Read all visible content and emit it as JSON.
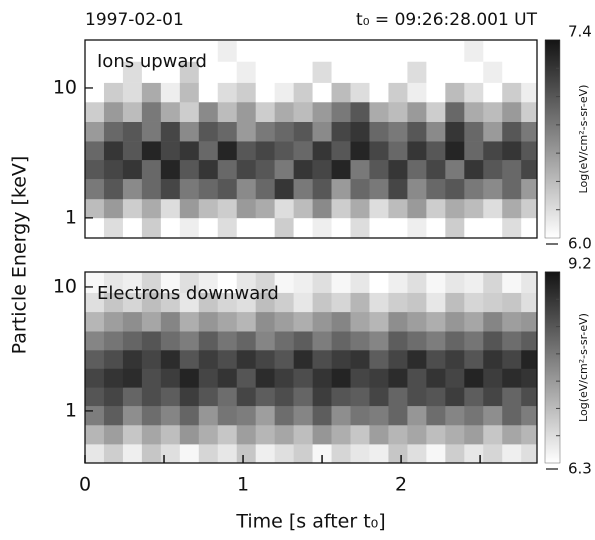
{
  "date": "1997-02-01",
  "time_ref": "t₀ = 09:26:28.001 UT",
  "ylabel": "Particle Energy  [keV]",
  "xlabel": "Time [s after t₀]",
  "chart_data": [
    {
      "type": "heatmap",
      "title": "Ions upward",
      "log_y": true,
      "xlim": [
        0,
        2.86
      ],
      "ylim": [
        0.7,
        23.4
      ],
      "yticks": [
        1,
        10
      ],
      "clim": [
        6.0,
        7.4
      ],
      "cticks": [
        {
          "value": 6.0,
          "label": "6.0"
        },
        7.4
      ],
      "colorbar_label": "Log(eV/cm²-s-sr-eV)",
      "colormap": "gray_r",
      "xbins": [
        0,
        0.12,
        0.24,
        0.36,
        0.48,
        0.6,
        0.72,
        0.84,
        0.96,
        1.08,
        1.2,
        1.32,
        1.44,
        1.56,
        1.68,
        1.8,
        1.92,
        2.04,
        2.16,
        2.28,
        2.4,
        2.52,
        2.64,
        2.76,
        2.88
      ],
      "ybins": [
        0.7,
        1.0,
        1.4,
        2.0,
        2.8,
        3.9,
        5.5,
        7.8,
        11,
        16,
        23
      ],
      "values": [
        [
          6.0,
          6.2,
          6.0,
          6.3,
          6.0,
          6.1,
          6.0,
          6.2,
          6.0,
          6.0,
          6.3,
          6.0,
          6.1,
          6.0,
          6.2,
          6.0,
          6.0,
          6.1,
          6.0,
          6.3,
          6.0,
          6.0,
          6.2,
          6.0
        ],
        [
          6.4,
          6.6,
          6.3,
          6.5,
          6.2,
          6.6,
          6.4,
          6.3,
          6.6,
          6.5,
          6.2,
          6.4,
          6.7,
          6.3,
          6.5,
          6.2,
          6.4,
          6.6,
          6.3,
          6.5,
          6.4,
          6.2,
          6.5,
          6.3
        ],
        [
          6.8,
          7.0,
          6.7,
          6.9,
          7.1,
          6.8,
          6.9,
          7.0,
          6.7,
          6.9,
          7.2,
          6.8,
          7.0,
          6.6,
          6.9,
          6.8,
          7.1,
          6.7,
          6.9,
          7.0,
          6.8,
          6.7,
          6.9,
          6.6
        ],
        [
          7.0,
          7.1,
          7.2,
          6.9,
          7.3,
          7.0,
          7.2,
          6.9,
          7.1,
          7.0,
          6.8,
          7.2,
          7.1,
          7.3,
          6.8,
          7.0,
          7.2,
          6.9,
          7.1,
          6.8,
          7.2,
          7.0,
          6.9,
          7.1
        ],
        [
          6.9,
          7.2,
          7.0,
          7.3,
          7.1,
          7.2,
          6.9,
          7.3,
          7.0,
          7.1,
          7.0,
          6.9,
          7.2,
          7.0,
          7.3,
          7.1,
          6.9,
          7.2,
          7.0,
          7.3,
          6.9,
          7.1,
          7.2,
          7.0
        ],
        [
          6.6,
          6.9,
          7.0,
          6.8,
          7.1,
          6.7,
          7.0,
          6.9,
          6.6,
          6.8,
          6.9,
          7.0,
          6.7,
          7.1,
          7.2,
          6.9,
          6.8,
          7.0,
          6.7,
          7.2,
          6.9,
          6.6,
          7.0,
          6.8
        ],
        [
          6.3,
          6.6,
          6.4,
          6.8,
          6.5,
          6.3,
          6.7,
          6.4,
          6.6,
          6.3,
          6.5,
          6.4,
          6.6,
          6.8,
          7.0,
          6.5,
          6.4,
          6.6,
          6.3,
          6.9,
          6.5,
          6.4,
          6.6,
          6.3
        ],
        [
          6.0,
          6.3,
          6.2,
          6.5,
          6.1,
          6.4,
          6.0,
          6.2,
          6.3,
          6.0,
          6.1,
          6.3,
          6.0,
          6.4,
          6.2,
          6.0,
          6.3,
          6.1,
          6.0,
          6.4,
          6.2,
          6.0,
          6.3,
          6.1
        ],
        [
          6.0,
          6.0,
          6.2,
          6.0,
          6.0,
          6.3,
          6.0,
          6.0,
          6.1,
          6.0,
          6.0,
          6.0,
          6.2,
          6.0,
          6.0,
          6.0,
          6.0,
          6.2,
          6.0,
          6.0,
          6.0,
          6.1,
          6.0,
          6.0
        ],
        [
          6.0,
          6.0,
          6.0,
          6.0,
          6.0,
          6.0,
          6.0,
          6.1,
          6.0,
          6.0,
          6.0,
          6.0,
          6.0,
          6.0,
          6.0,
          6.0,
          6.0,
          6.0,
          6.0,
          6.0,
          6.1,
          6.0,
          6.0,
          6.0
        ]
      ]
    },
    {
      "type": "heatmap",
      "title": "Electrons downward",
      "log_y": true,
      "xlim": [
        0,
        2.86
      ],
      "ylim": [
        0.38,
        13.2
      ],
      "yticks": [
        1,
        10
      ],
      "xticks": [
        0,
        1,
        2
      ],
      "xminor": [
        0.5,
        1.5,
        2.5
      ],
      "clim": [
        6.3,
        9.2
      ],
      "cticks": [
        6.3,
        9.2
      ],
      "colorbar_label": "Log(eV/cm²-s-sr-eV)",
      "colormap": "gray_r",
      "xbins": [
        0,
        0.12,
        0.24,
        0.36,
        0.48,
        0.6,
        0.72,
        0.84,
        0.96,
        1.08,
        1.2,
        1.32,
        1.44,
        1.56,
        1.68,
        1.8,
        1.92,
        2.04,
        2.16,
        2.28,
        2.4,
        2.52,
        2.64,
        2.76,
        2.88
      ],
      "ybins": [
        0.38,
        0.54,
        0.77,
        1.1,
        1.55,
        2.2,
        3.1,
        4.4,
        6.3,
        9.0,
        13
      ],
      "values": [
        [
          6.6,
          6.9,
          6.5,
          7.0,
          6.7,
          6.4,
          6.8,
          6.6,
          7.0,
          6.5,
          6.7,
          6.9,
          6.4,
          6.8,
          6.6,
          6.5,
          7.0,
          6.7,
          6.4,
          6.9,
          6.6,
          6.8,
          6.5,
          6.7
        ],
        [
          7.2,
          7.5,
          7.0,
          7.4,
          7.1,
          7.6,
          7.3,
          7.0,
          7.5,
          7.2,
          7.4,
          7.1,
          7.6,
          7.3,
          7.0,
          7.5,
          7.2,
          7.4,
          7.1,
          7.3,
          7.5,
          7.0,
          7.4,
          7.2
        ],
        [
          7.9,
          8.3,
          7.7,
          8.1,
          7.8,
          8.2,
          7.6,
          8.0,
          7.9,
          7.5,
          8.1,
          7.8,
          8.3,
          7.7,
          8.0,
          7.9,
          8.2,
          7.6,
          8.1,
          7.8,
          8.0,
          7.7,
          8.2,
          7.9
        ],
        [
          8.4,
          8.6,
          8.2,
          8.5,
          8.3,
          8.7,
          8.4,
          8.1,
          8.6,
          8.3,
          8.5,
          8.2,
          8.7,
          8.4,
          8.3,
          8.6,
          8.2,
          8.5,
          8.4,
          8.7,
          8.3,
          8.6,
          8.2,
          8.5
        ],
        [
          8.6,
          8.8,
          8.9,
          8.5,
          8.7,
          9.0,
          8.6,
          8.8,
          8.4,
          8.9,
          8.7,
          8.5,
          8.8,
          9.0,
          8.6,
          8.7,
          8.9,
          8.5,
          8.8,
          8.6,
          9.0,
          8.7,
          8.9,
          8.8
        ],
        [
          8.3,
          8.5,
          8.8,
          8.6,
          8.9,
          8.4,
          8.7,
          8.5,
          8.8,
          8.6,
          8.4,
          8.9,
          8.5,
          8.7,
          8.8,
          8.3,
          8.6,
          8.9,
          8.5,
          8.7,
          8.4,
          8.8,
          8.6,
          9.0
        ],
        [
          7.8,
          8.0,
          8.2,
          8.4,
          8.1,
          7.9,
          8.3,
          8.0,
          8.2,
          7.8,
          8.1,
          8.3,
          7.9,
          8.2,
          8.0,
          7.8,
          8.3,
          8.1,
          7.9,
          8.2,
          8.0,
          8.4,
          8.1,
          8.3
        ],
        [
          7.2,
          7.5,
          7.7,
          7.4,
          7.8,
          7.3,
          7.6,
          7.4,
          7.2,
          7.7,
          7.5,
          7.3,
          7.6,
          7.8,
          7.4,
          7.2,
          7.7,
          7.5,
          7.3,
          7.6,
          7.4,
          7.8,
          7.5,
          7.6
        ],
        [
          6.7,
          7.0,
          6.8,
          7.1,
          6.9,
          6.6,
          7.0,
          6.8,
          6.7,
          7.1,
          6.9,
          6.6,
          7.0,
          6.8,
          7.2,
          6.7,
          6.9,
          7.0,
          6.6,
          7.1,
          6.8,
          6.9,
          7.0,
          6.7
        ],
        [
          6.4,
          6.6,
          6.5,
          6.8,
          6.4,
          6.7,
          6.5,
          6.3,
          6.6,
          6.8,
          6.4,
          6.5,
          6.7,
          6.4,
          6.6,
          6.3,
          6.5,
          6.7,
          6.4,
          6.6,
          6.5,
          6.8,
          6.4,
          6.6
        ]
      ]
    }
  ]
}
